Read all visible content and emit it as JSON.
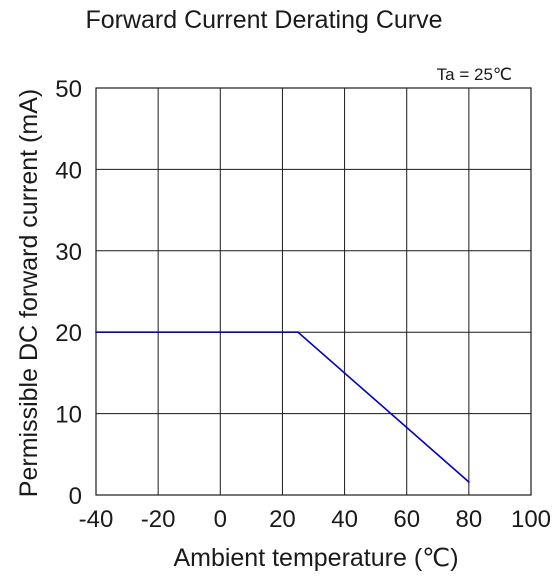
{
  "chart_data": {
    "type": "line",
    "title": "Forward Current Derating Curve",
    "xlabel": "Ambient temperature (℃)",
    "ylabel": "Permissible DC forward current (mA)",
    "annotation": "Ta = 25℃",
    "xlim": [
      -40,
      100
    ],
    "ylim": [
      0,
      50
    ],
    "x_ticks": [
      "-40",
      "-20",
      "0",
      "20",
      "40",
      "60",
      "80",
      "100"
    ],
    "y_ticks": [
      "0",
      "10",
      "20",
      "30",
      "40",
      "50"
    ],
    "grid": true,
    "series": [
      {
        "color": "#0000cc",
        "points": [
          {
            "x": -40,
            "y": 20
          },
          {
            "x": 25,
            "y": 20
          },
          {
            "x": 80,
            "y": 1.6
          }
        ]
      }
    ]
  }
}
